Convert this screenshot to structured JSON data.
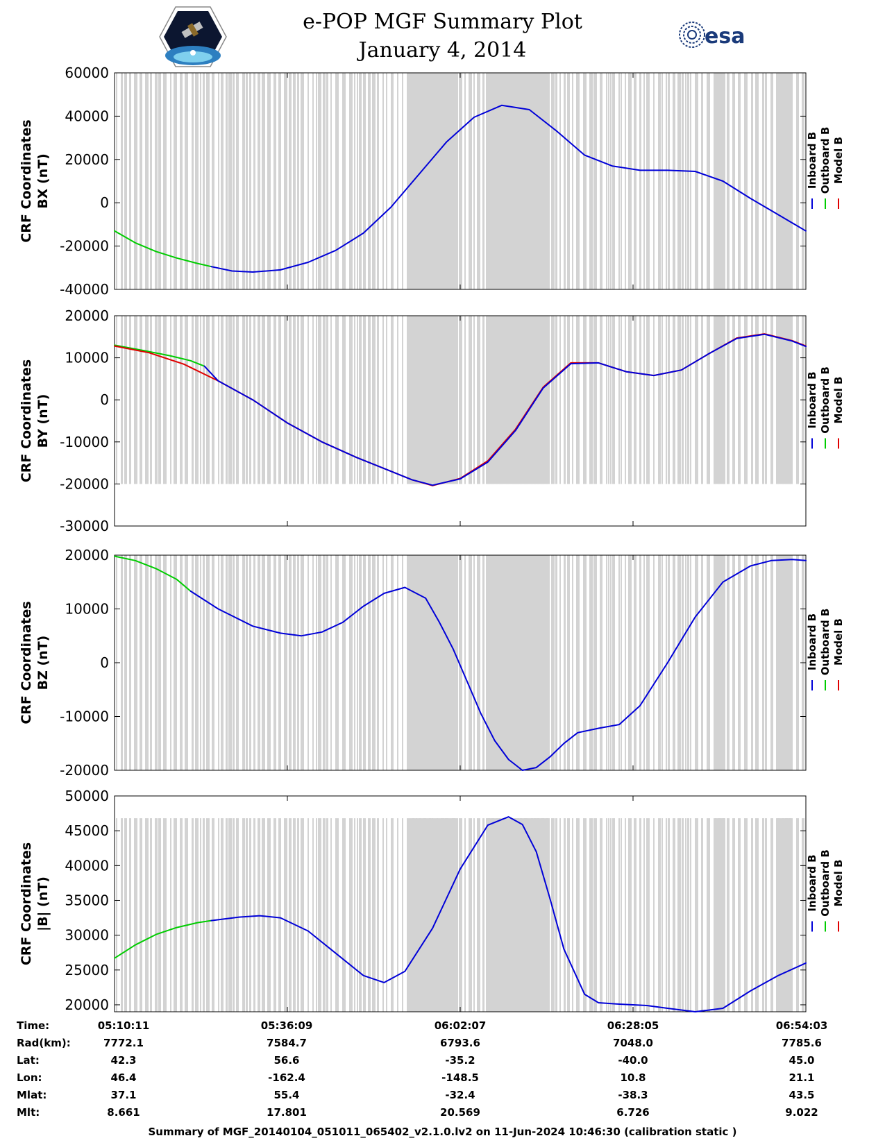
{
  "header": {
    "title_line1": "e-POP MGF Summary Plot",
    "title_line2": "January 4, 2014",
    "left_logo": "cassiope-mission-logo",
    "right_logo": "esa-logo",
    "right_logo_text": "esa"
  },
  "colors": {
    "inboard": "#0000d8",
    "outboard": "#00cc00",
    "model": "#e00000",
    "data_gap_bars": "#d3d3d3"
  },
  "chart_data": [
    {
      "type": "line",
      "ylabel_line1": "CRF Coordinates",
      "ylabel_line2": "BX (nT)",
      "ylim": [
        -40000,
        60000
      ],
      "yticks": [
        60000,
        40000,
        20000,
        0,
        -20000,
        -40000
      ],
      "xlim": [
        0,
        100
      ],
      "xticks": [
        0,
        25,
        50,
        75,
        100
      ],
      "legend": [
        "Inboard B",
        "Outboard B",
        "Model B"
      ],
      "legend_position": "right",
      "gray_top": 60000,
      "series": [
        {
          "name": "Outboard B",
          "x": [
            0,
            3,
            6,
            9,
            12,
            14
          ],
          "y": [
            -13000,
            -18500,
            -22500,
            -25500,
            -28000,
            -29500
          ]
        },
        {
          "name": "Inboard B",
          "x": [
            14,
            17,
            20,
            24,
            28,
            32,
            36,
            40,
            44,
            48,
            52,
            56,
            60,
            64,
            68,
            72,
            76,
            80,
            84,
            88,
            92,
            96,
            100
          ],
          "y": [
            -29500,
            -31500,
            -32000,
            -31000,
            -27500,
            -22000,
            -14000,
            -2000,
            13000,
            28000,
            39500,
            45000,
            43000,
            33000,
            22000,
            17000,
            15000,
            15000,
            14500,
            10000,
            2000,
            -5500,
            -13000
          ]
        }
      ]
    },
    {
      "type": "line",
      "ylabel_line1": "CRF Coordinates",
      "ylabel_line2": "BY (nT)",
      "ylim": [
        -30000,
        20000
      ],
      "yticks": [
        20000,
        10000,
        0,
        -10000,
        -20000,
        -30000
      ],
      "xlim": [
        0,
        100
      ],
      "xticks": [
        0,
        25,
        50,
        75,
        100
      ],
      "legend": [
        "Inboard B",
        "Outboard B",
        "Model B"
      ],
      "legend_position": "right",
      "gray_top": 20000,
      "gray_bottom": -20000,
      "series": [
        {
          "name": "Outboard B",
          "x": [
            0,
            4,
            8,
            11,
            13
          ],
          "y": [
            13000,
            11800,
            10500,
            9300,
            8000
          ]
        },
        {
          "name": "Model B",
          "x": [
            0,
            5,
            10,
            15,
            20,
            25,
            30,
            35,
            40,
            43,
            46,
            50,
            54,
            58,
            62,
            66,
            70,
            74,
            78,
            82,
            86,
            90,
            94,
            98,
            100
          ],
          "y": [
            12800,
            11200,
            8500,
            4500,
            0,
            -5500,
            -10000,
            -13700,
            -17000,
            -19000,
            -20400,
            -18700,
            -14500,
            -7000,
            3000,
            8800,
            8800,
            6700,
            5800,
            7100,
            11000,
            14700,
            15700,
            14100,
            12800
          ]
        },
        {
          "name": "Inboard B",
          "x": [
            13,
            15,
            20,
            25,
            30,
            35,
            40,
            43,
            46,
            50,
            54,
            58,
            62,
            66,
            70,
            74,
            78,
            82,
            86,
            90,
            94,
            98,
            100
          ],
          "y": [
            8000,
            4500,
            0,
            -5500,
            -10000,
            -13700,
            -17000,
            -19000,
            -20300,
            -18800,
            -14800,
            -7300,
            2800,
            8600,
            8800,
            6700,
            5800,
            7100,
            11000,
            14600,
            15600,
            14000,
            12700
          ]
        }
      ]
    },
    {
      "type": "line",
      "ylabel_line1": "CRF Coordinates",
      "ylabel_line2": "BZ (nT)",
      "ylim": [
        -20000,
        20000
      ],
      "yticks": [
        20000,
        10000,
        0,
        -10000,
        -20000
      ],
      "xlim": [
        0,
        100
      ],
      "xticks": [
        0,
        25,
        50,
        75,
        100
      ],
      "legend": [
        "Inboard B",
        "Outboard B",
        "Model B"
      ],
      "legend_position": "right",
      "gray_top": 20000,
      "series": [
        {
          "name": "Outboard B",
          "x": [
            0,
            3,
            6,
            9,
            11
          ],
          "y": [
            19800,
            19000,
            17500,
            15500,
            13300
          ]
        },
        {
          "name": "Inboard B",
          "x": [
            11,
            15,
            20,
            24,
            27,
            30,
            33,
            36,
            39,
            42,
            45,
            47,
            49,
            51,
            53,
            55,
            57,
            59,
            61,
            63,
            65,
            67,
            70,
            73,
            76,
            80,
            84,
            88,
            92,
            95,
            98,
            100
          ],
          "y": [
            13300,
            10000,
            6800,
            5500,
            5000,
            5700,
            7500,
            10500,
            12900,
            14000,
            12000,
            7500,
            2500,
            -3500,
            -9500,
            -14500,
            -18000,
            -20000,
            -19500,
            -17500,
            -15000,
            -13000,
            -12200,
            -11500,
            -8000,
            0,
            8500,
            15000,
            18000,
            19000,
            19200,
            19000
          ]
        }
      ]
    },
    {
      "type": "line",
      "ylabel_line1": "CRF Coordinates",
      "ylabel_line2": "|B| (nT)",
      "ylim": [
        19000,
        50000
      ],
      "yticks": [
        50000,
        45000,
        40000,
        35000,
        30000,
        25000,
        20000
      ],
      "xlim": [
        0,
        100
      ],
      "xticks": [
        0,
        25,
        50,
        75,
        100
      ],
      "legend": [
        "Inboard B",
        "Outboard B",
        "Model B"
      ],
      "legend_position": "right",
      "gray_top": 46800,
      "series": [
        {
          "name": "Outboard B",
          "x": [
            0,
            3,
            6,
            9,
            12,
            14
          ],
          "y": [
            26700,
            28600,
            30100,
            31100,
            31800,
            32100
          ]
        },
        {
          "name": "Inboard B",
          "x": [
            14,
            18,
            21,
            24,
            28,
            32,
            36,
            39,
            42,
            46,
            50,
            54,
            57,
            59,
            61,
            63,
            65,
            68,
            70,
            73,
            77,
            80,
            84,
            88,
            92,
            96,
            100
          ],
          "y": [
            32100,
            32600,
            32800,
            32500,
            30600,
            27400,
            24200,
            23200,
            24800,
            31000,
            39500,
            45800,
            47000,
            45900,
            42000,
            35200,
            28000,
            21500,
            20300,
            20100,
            19900,
            19500,
            19000,
            19500,
            22000,
            24200,
            26000
          ]
        }
      ]
    }
  ],
  "info_table": {
    "labels": [
      "Time:",
      "Rad(km):",
      "Lat:",
      "Lon:",
      "Mlat:",
      "Mlt:"
    ],
    "columns": [
      [
        "05:10:11",
        "7772.1",
        "42.3",
        "46.4",
        "37.1",
        "8.661"
      ],
      [
        "05:36:09",
        "7584.7",
        "56.6",
        "-162.4",
        "55.4",
        "17.801"
      ],
      [
        "06:02:07",
        "6793.6",
        "-35.2",
        "-148.5",
        "-32.4",
        "20.569"
      ],
      [
        "06:28:05",
        "7048.0",
        "-40.0",
        "10.8",
        "-38.3",
        "6.726"
      ],
      [
        "06:54:03",
        "7785.6",
        "45.0",
        "21.1",
        "43.5",
        "9.022"
      ]
    ]
  },
  "footer": {
    "text": "Summary of MGF_20140104_051011_065402_v2.1.0.lv2 on 11-Jun-2024 10:46:30 (calibration static )"
  }
}
